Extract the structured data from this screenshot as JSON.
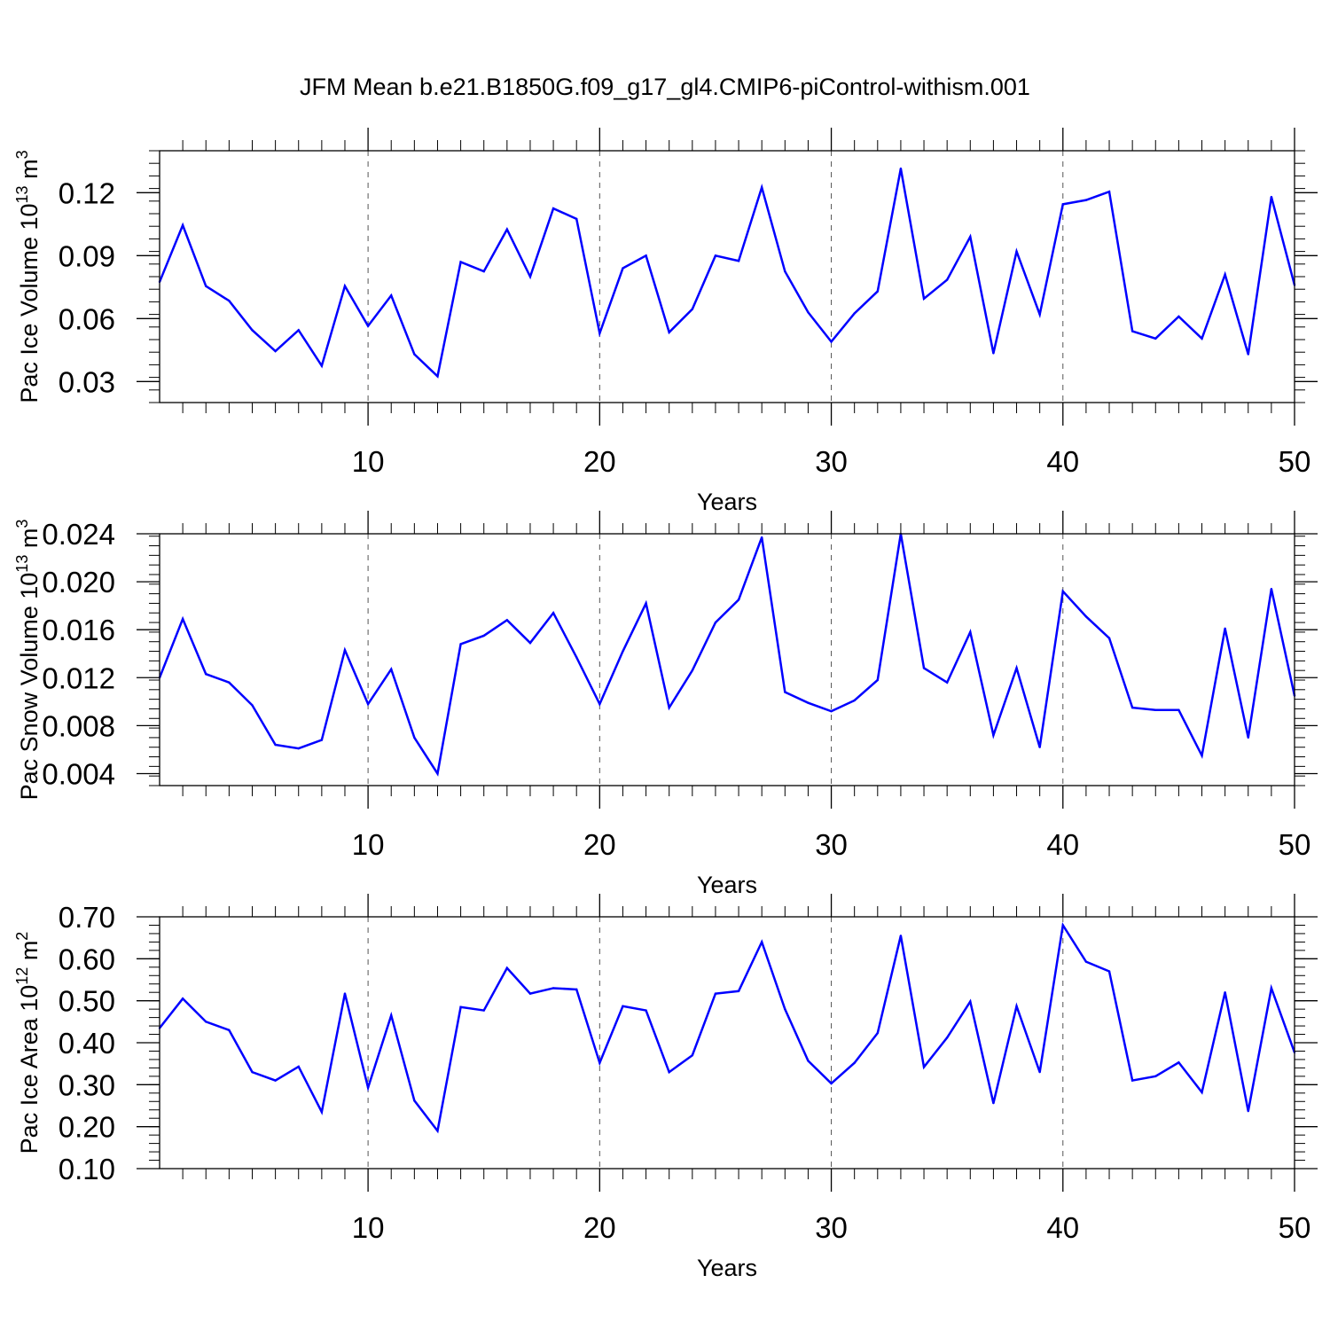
{
  "figure_title": "JFM Mean b.e21.B1850G.f09_g17_gl4.CMIP6-piControl-withism.001",
  "line_color": "#0000ff",
  "chart_data": [
    {
      "type": "line",
      "title": "",
      "xlabel": "Years",
      "ylabel": {
        "base": "Pac Ice Volume 10",
        "exp": "13",
        "unit": " m",
        "unit_exp": "3"
      },
      "xlim": [
        1,
        50
      ],
      "ylim": [
        0.02,
        0.14
      ],
      "xticks": [
        10,
        20,
        30,
        40,
        50
      ],
      "yticks": [
        0.03,
        0.06,
        0.09,
        0.12
      ],
      "ytick_labels": [
        "0.03",
        "0.06",
        "0.09",
        "0.12"
      ],
      "ytick_minor_step": 0.006,
      "grid": "vertical dashed at major x ticks",
      "x": [
        1,
        2,
        3,
        4,
        5,
        6,
        7,
        8,
        9,
        10,
        11,
        12,
        13,
        14,
        15,
        16,
        17,
        18,
        19,
        20,
        21,
        22,
        23,
        24,
        25,
        26,
        27,
        28,
        29,
        30,
        31,
        32,
        33,
        34,
        35,
        36,
        37,
        38,
        39,
        40,
        41,
        42,
        43,
        44,
        45,
        46,
        47,
        48,
        49,
        50
      ],
      "series": [
        {
          "name": "Pac Ice Volume",
          "values": [
            0.0775,
            0.1045,
            0.0755,
            0.0685,
            0.0545,
            0.0445,
            0.0545,
            0.0375,
            0.0755,
            0.0565,
            0.071,
            0.043,
            0.0325,
            0.087,
            0.0825,
            0.1025,
            0.08,
            0.1125,
            0.1075,
            0.053,
            0.084,
            0.09,
            0.0535,
            0.0645,
            0.09,
            0.0875,
            0.1225,
            0.0825,
            0.063,
            0.049,
            0.0625,
            0.073,
            0.1315,
            0.0695,
            0.0785,
            0.099,
            0.0435,
            0.092,
            0.062,
            0.1145,
            0.1165,
            0.1205,
            0.054,
            0.0505,
            0.061,
            0.0505,
            0.081,
            0.043,
            0.118,
            0.076
          ]
        }
      ]
    },
    {
      "type": "line",
      "title": "",
      "xlabel": "Years",
      "ylabel": {
        "base": "Pac Snow Volume 10",
        "exp": "13",
        "unit": " m",
        "unit_exp": "3"
      },
      "xlim": [
        1,
        50
      ],
      "ylim": [
        0.003,
        0.024
      ],
      "xticks": [
        10,
        20,
        30,
        40,
        50
      ],
      "yticks": [
        0.004,
        0.008,
        0.012,
        0.016,
        0.02,
        0.024
      ],
      "ytick_labels": [
        "0.004",
        "0.008",
        "0.012",
        "0.016",
        "0.020",
        "0.024"
      ],
      "ytick_minor_step": 0.0008,
      "grid": "vertical dashed at major x ticks",
      "x": [
        1,
        2,
        3,
        4,
        5,
        6,
        7,
        8,
        9,
        10,
        11,
        12,
        13,
        14,
        15,
        16,
        17,
        18,
        19,
        20,
        21,
        22,
        23,
        24,
        25,
        26,
        27,
        28,
        29,
        30,
        31,
        32,
        33,
        34,
        35,
        36,
        37,
        38,
        39,
        40,
        41,
        42,
        43,
        44,
        45,
        46,
        47,
        48,
        49,
        50
      ],
      "series": [
        {
          "name": "Pac Snow Volume",
          "values": [
            0.012,
            0.0169,
            0.0123,
            0.0116,
            0.0097,
            0.0064,
            0.0061,
            0.0068,
            0.0143,
            0.0098,
            0.0127,
            0.007,
            0.004,
            0.0148,
            0.0155,
            0.0168,
            0.0149,
            0.0174,
            0.0137,
            0.0098,
            0.0142,
            0.0182,
            0.0095,
            0.0126,
            0.0166,
            0.0185,
            0.0237,
            0.0108,
            0.0099,
            0.0092,
            0.0101,
            0.0118,
            0.024,
            0.0128,
            0.0116,
            0.0158,
            0.0072,
            0.0128,
            0.0062,
            0.0192,
            0.0171,
            0.0153,
            0.0095,
            0.0093,
            0.0093,
            0.0055,
            0.0161,
            0.007,
            0.0194,
            0.0105
          ]
        }
      ]
    },
    {
      "type": "line",
      "title": "",
      "xlabel": "Years",
      "ylabel": {
        "base": "Pac Ice Area 10",
        "exp": "12",
        "unit": " m",
        "unit_exp": "2"
      },
      "xlim": [
        1,
        50
      ],
      "ylim": [
        0.1,
        0.7
      ],
      "xticks": [
        10,
        20,
        30,
        40,
        50
      ],
      "yticks": [
        0.1,
        0.2,
        0.3,
        0.4,
        0.5,
        0.6,
        0.7
      ],
      "ytick_labels": [
        "0.10",
        "0.20",
        "0.30",
        "0.40",
        "0.50",
        "0.60",
        "0.70"
      ],
      "ytick_minor_step": 0.02,
      "grid": "vertical dashed at major x ticks",
      "x": [
        1,
        2,
        3,
        4,
        5,
        6,
        7,
        8,
        9,
        10,
        11,
        12,
        13,
        14,
        15,
        16,
        17,
        18,
        19,
        20,
        21,
        22,
        23,
        24,
        25,
        26,
        27,
        28,
        29,
        30,
        31,
        32,
        33,
        34,
        35,
        36,
        37,
        38,
        39,
        40,
        41,
        42,
        43,
        44,
        45,
        46,
        47,
        48,
        49,
        50
      ],
      "series": [
        {
          "name": "Pac Ice Area",
          "values": [
            0.435,
            0.505,
            0.45,
            0.43,
            0.33,
            0.31,
            0.343,
            0.235,
            0.517,
            0.293,
            0.465,
            0.262,
            0.19,
            0.485,
            0.477,
            0.578,
            0.517,
            0.53,
            0.527,
            0.352,
            0.487,
            0.477,
            0.33,
            0.37,
            0.517,
            0.523,
            0.64,
            0.48,
            0.357,
            0.303,
            0.352,
            0.423,
            0.655,
            0.342,
            0.412,
            0.498,
            0.256,
            0.487,
            0.33,
            0.68,
            0.593,
            0.57,
            0.31,
            0.32,
            0.353,
            0.282,
            0.52,
            0.237,
            0.53,
            0.377
          ]
        }
      ]
    }
  ]
}
